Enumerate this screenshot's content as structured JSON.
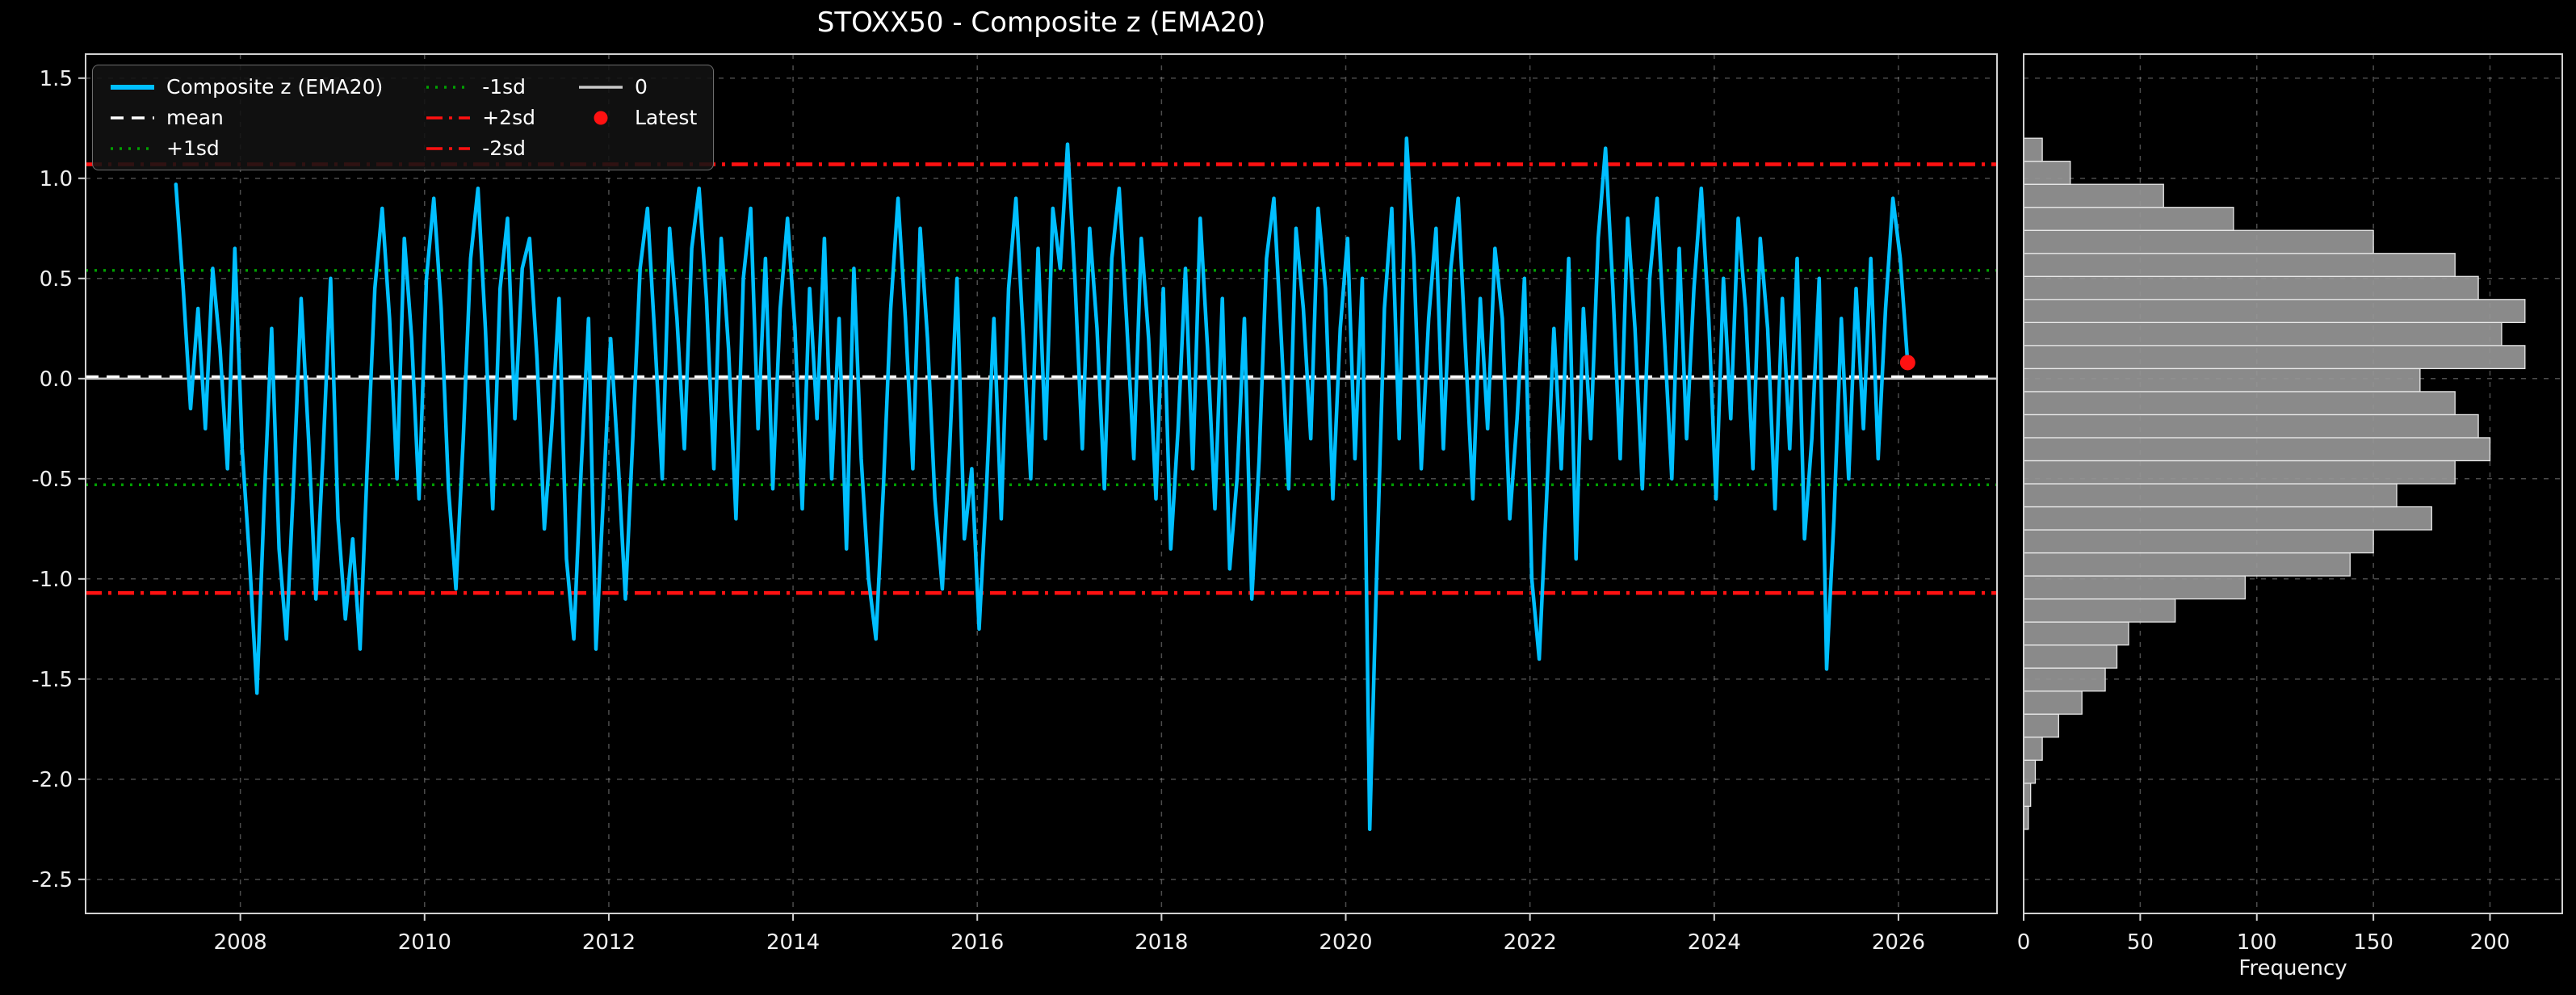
{
  "title": "STOXX50 - Composite z (EMA20)",
  "legend": [
    {
      "label": "Composite z (EMA20)",
      "style": "solid-thick",
      "color": "#00BFFF"
    },
    {
      "label": "mean",
      "style": "dashed",
      "color": "#ffffff"
    },
    {
      "label": "+1sd",
      "style": "dotted",
      "color": "#00a000"
    },
    {
      "label": "-1sd",
      "style": "dotted",
      "color": "#00a000"
    },
    {
      "label": "+2sd",
      "style": "dashdot",
      "color": "#ff1111"
    },
    {
      "label": "-2sd",
      "style": "dashdot",
      "color": "#ff1111"
    },
    {
      "label": "0",
      "style": "solid",
      "color": "#c8c8c8"
    },
    {
      "label": "Latest",
      "style": "marker",
      "color": "#ff1111"
    }
  ],
  "chart_data": [
    {
      "type": "line",
      "title": "STOXX50 - Composite z (EMA20)",
      "name": "Composite z (EMA20)",
      "color": "#00BFFF",
      "background": "#000000",
      "grid": true,
      "legend_position": "upper-left",
      "x_start": 2007.3,
      "x_step": 0.08,
      "values": [
        0.97,
        0.45,
        -0.15,
        0.35,
        -0.25,
        0.55,
        0.15,
        -0.45,
        0.65,
        -0.35,
        -0.9,
        -1.57,
        -0.6,
        0.25,
        -0.85,
        -1.3,
        -0.5,
        0.4,
        -0.3,
        -1.1,
        -0.35,
        0.5,
        -0.7,
        -1.2,
        -0.8,
        -1.35,
        -0.4,
        0.45,
        0.85,
        0.3,
        -0.5,
        0.7,
        0.2,
        -0.6,
        0.5,
        0.9,
        0.35,
        -0.55,
        -1.05,
        -0.3,
        0.6,
        0.95,
        0.25,
        -0.65,
        0.45,
        0.8,
        -0.2,
        0.55,
        0.7,
        0.1,
        -0.75,
        -0.25,
        0.4,
        -0.9,
        -1.3,
        -0.45,
        0.3,
        -1.35,
        -0.6,
        0.2,
        -0.4,
        -1.1,
        -0.3,
        0.55,
        0.85,
        0.2,
        -0.5,
        0.75,
        0.3,
        -0.35,
        0.65,
        0.95,
        0.4,
        -0.45,
        0.7,
        0.15,
        -0.7,
        0.5,
        0.85,
        -0.25,
        0.6,
        -0.55,
        0.35,
        0.8,
        0.25,
        -0.65,
        0.45,
        -0.2,
        0.7,
        -0.5,
        0.3,
        -0.85,
        0.55,
        -0.4,
        -1.0,
        -1.3,
        -0.55,
        0.35,
        0.9,
        0.3,
        -0.45,
        0.75,
        0.2,
        -0.6,
        -1.05,
        -0.35,
        0.5,
        -0.8,
        -0.45,
        -1.25,
        -0.55,
        0.3,
        -0.7,
        0.45,
        0.9,
        0.2,
        -0.5,
        0.65,
        -0.3,
        0.85,
        0.55,
        1.17,
        0.5,
        -0.35,
        0.75,
        0.25,
        -0.55,
        0.6,
        0.95,
        0.3,
        -0.4,
        0.7,
        0.2,
        -0.6,
        0.45,
        -0.85,
        -0.25,
        0.55,
        -0.45,
        0.8,
        0.15,
        -0.65,
        0.4,
        -0.95,
        -0.5,
        0.3,
        -1.1,
        -0.4,
        0.6,
        0.9,
        0.2,
        -0.55,
        0.75,
        0.35,
        -0.3,
        0.85,
        0.45,
        -0.6,
        0.25,
        0.7,
        -0.4,
        0.5,
        -2.25,
        -0.9,
        0.35,
        0.85,
        -0.3,
        1.2,
        0.6,
        -0.45,
        0.3,
        0.75,
        -0.35,
        0.55,
        0.9,
        0.15,
        -0.6,
        0.4,
        -0.25,
        0.65,
        0.3,
        -0.7,
        -0.2,
        0.5,
        -1.0,
        -1.4,
        -0.6,
        0.25,
        -0.45,
        0.6,
        -0.9,
        0.35,
        -0.3,
        0.7,
        1.15,
        0.45,
        -0.4,
        0.8,
        0.25,
        -0.55,
        0.5,
        0.9,
        0.2,
        -0.5,
        0.65,
        -0.3,
        0.45,
        0.95,
        0.3,
        -0.6,
        0.5,
        -0.2,
        0.8,
        0.35,
        -0.45,
        0.7,
        0.25,
        -0.65,
        0.4,
        -0.35,
        0.6,
        -0.8,
        -0.3,
        0.5,
        -1.45,
        -0.7,
        0.3,
        -0.5,
        0.45,
        -0.25,
        0.6,
        -0.4,
        0.35,
        0.9,
        0.6,
        0.08
      ],
      "latest": {
        "x": 2026.1,
        "y": 0.08,
        "color": "#ff1111"
      },
      "xlim": [
        2006.32,
        2027.07
      ],
      "ylim": [
        -2.67,
        1.62
      ],
      "xticks": [
        2008,
        2010,
        2012,
        2014,
        2016,
        2018,
        2020,
        2022,
        2024,
        2026
      ],
      "yticks": [
        1.5,
        1.0,
        0.5,
        0.0,
        -0.5,
        -1.0,
        -1.5,
        -2.0,
        -2.5
      ],
      "ref_lines": [
        {
          "name": "zero",
          "label": "0",
          "value": 0.0,
          "style": "solid",
          "color": "#c8c8c8"
        },
        {
          "name": "mean",
          "label": "mean",
          "value": 0.01,
          "style": "dashed",
          "color": "#ffffff"
        },
        {
          "name": "plus-1sd",
          "label": "+1sd",
          "value": 0.54,
          "style": "dotted",
          "color": "#00a000"
        },
        {
          "name": "minus-1sd",
          "label": "-1sd",
          "value": -0.53,
          "style": "dotted",
          "color": "#00a000"
        },
        {
          "name": "plus-2sd",
          "label": "+2sd",
          "value": 1.07,
          "style": "dashdot",
          "color": "#ff1111"
        },
        {
          "name": "minus-2sd",
          "label": "-2sd",
          "value": -1.07,
          "style": "dashdot",
          "color": "#ff1111"
        }
      ]
    },
    {
      "type": "bar",
      "orientation": "horizontal",
      "xlabel": "Frequency",
      "bin_start": -2.25,
      "bin_width": 0.115,
      "counts": [
        2,
        3,
        5,
        8,
        15,
        25,
        35,
        40,
        45,
        65,
        95,
        140,
        150,
        175,
        160,
        185,
        200,
        195,
        185,
        170,
        215,
        205,
        215,
        195,
        185,
        150,
        90,
        60,
        20,
        8
      ],
      "bar_color": "#969696",
      "bar_edge_color": "#e8e8e8",
      "xlim": [
        0,
        231
      ],
      "ylim": [
        -2.67,
        1.62
      ],
      "xticks": [
        0,
        50,
        100,
        150,
        200
      ]
    }
  ]
}
